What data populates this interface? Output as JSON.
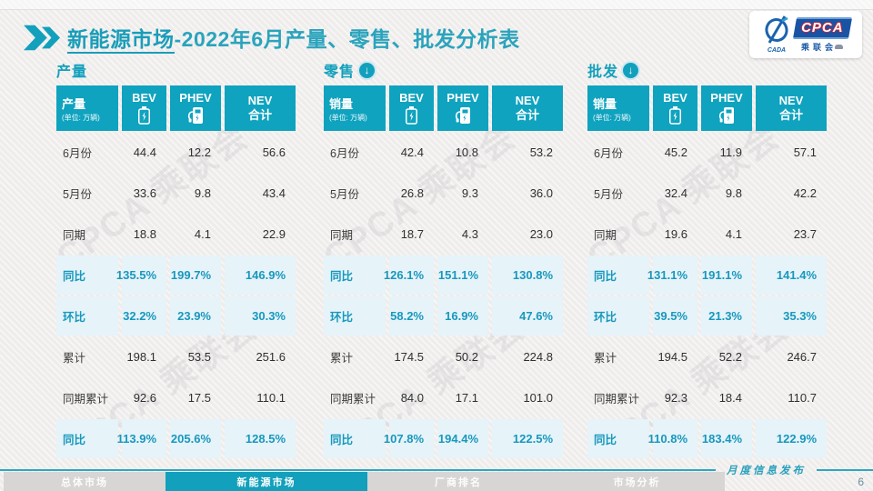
{
  "header": {
    "title_primary": "新能源市场",
    "title_secondary": "-2022年6月产量、零售、批发分析表",
    "accent_color": "#12a0bc"
  },
  "logo": {
    "cpca_text": "CPCA",
    "assoc_text": "乘联会",
    "cada_text": "CADA"
  },
  "watermark": "CPCA 乘联会",
  "colors": {
    "table_header": "#0fa3bf",
    "highlight_row_bg": "#e6f3f9",
    "highlight_text": "#1798bd",
    "footer_rule": "#2ba7c2"
  },
  "tables": [
    {
      "section_title": "产量",
      "has_down_arrow": false,
      "header": {
        "label": "产量",
        "unit": "(单位: 万辆)",
        "cols": [
          "BEV",
          "PHEV",
          "NEV\n合计"
        ]
      },
      "rows": [
        {
          "label": "6月份",
          "values": [
            "44.4",
            "12.2",
            "56.6"
          ],
          "highlight": false
        },
        {
          "label": "5月份",
          "values": [
            "33.6",
            "9.8",
            "43.4"
          ],
          "highlight": false
        },
        {
          "label": "同期",
          "values": [
            "18.8",
            "4.1",
            "22.9"
          ],
          "highlight": false
        },
        {
          "label": "同比",
          "values": [
            "135.5%",
            "199.7%",
            "146.9%"
          ],
          "highlight": true
        },
        {
          "label": "环比",
          "values": [
            "32.2%",
            "23.9%",
            "30.3%"
          ],
          "highlight": true
        },
        {
          "label": "累计",
          "values": [
            "198.1",
            "53.5",
            "251.6"
          ],
          "highlight": false
        },
        {
          "label": "同期累计",
          "values": [
            "92.6",
            "17.5",
            "110.1"
          ],
          "highlight": false
        },
        {
          "label": "同比",
          "values": [
            "113.9%",
            "205.6%",
            "128.5%"
          ],
          "highlight": true
        }
      ]
    },
    {
      "section_title": "零售",
      "has_down_arrow": true,
      "header": {
        "label": "销量",
        "unit": "(单位: 万辆)",
        "cols": [
          "BEV",
          "PHEV",
          "NEV\n合计"
        ]
      },
      "rows": [
        {
          "label": "6月份",
          "values": [
            "42.4",
            "10.8",
            "53.2"
          ],
          "highlight": false
        },
        {
          "label": "5月份",
          "values": [
            "26.8",
            "9.3",
            "36.0"
          ],
          "highlight": false
        },
        {
          "label": "同期",
          "values": [
            "18.7",
            "4.3",
            "23.0"
          ],
          "highlight": false
        },
        {
          "label": "同比",
          "values": [
            "126.1%",
            "151.1%",
            "130.8%"
          ],
          "highlight": true
        },
        {
          "label": "环比",
          "values": [
            "58.2%",
            "16.9%",
            "47.6%"
          ],
          "highlight": true
        },
        {
          "label": "累计",
          "values": [
            "174.5",
            "50.2",
            "224.8"
          ],
          "highlight": false
        },
        {
          "label": "同期累计",
          "values": [
            "84.0",
            "17.1",
            "101.0"
          ],
          "highlight": false
        },
        {
          "label": "同比",
          "values": [
            "107.8%",
            "194.4%",
            "122.5%"
          ],
          "highlight": true
        }
      ]
    },
    {
      "section_title": "批发",
      "has_down_arrow": true,
      "header": {
        "label": "销量",
        "unit": "(单位: 万辆)",
        "cols": [
          "BEV",
          "PHEV",
          "NEV\n合计"
        ]
      },
      "rows": [
        {
          "label": "6月份",
          "values": [
            "45.2",
            "11.9",
            "57.1"
          ],
          "highlight": false
        },
        {
          "label": "5月份",
          "values": [
            "32.4",
            "9.8",
            "42.2"
          ],
          "highlight": false
        },
        {
          "label": "同期",
          "values": [
            "19.6",
            "4.1",
            "23.7"
          ],
          "highlight": false
        },
        {
          "label": "同比",
          "values": [
            "131.1%",
            "191.1%",
            "141.4%"
          ],
          "highlight": true
        },
        {
          "label": "环比",
          "values": [
            "39.5%",
            "21.3%",
            "35.3%"
          ],
          "highlight": true
        },
        {
          "label": "累计",
          "values": [
            "194.5",
            "52.2",
            "246.7"
          ],
          "highlight": false
        },
        {
          "label": "同期累计",
          "values": [
            "92.3",
            "18.4",
            "110.7"
          ],
          "highlight": false
        },
        {
          "label": "同比",
          "values": [
            "110.8%",
            "183.4%",
            "122.9%"
          ],
          "highlight": true
        }
      ]
    }
  ],
  "footer": {
    "tabs": [
      {
        "label": "总体市场",
        "active": false
      },
      {
        "label": "新能源市场",
        "active": true
      },
      {
        "label": "厂商排名",
        "active": false
      },
      {
        "label": "市场分析",
        "active": false
      }
    ],
    "note": "月度信息发布",
    "page_number": "6"
  }
}
